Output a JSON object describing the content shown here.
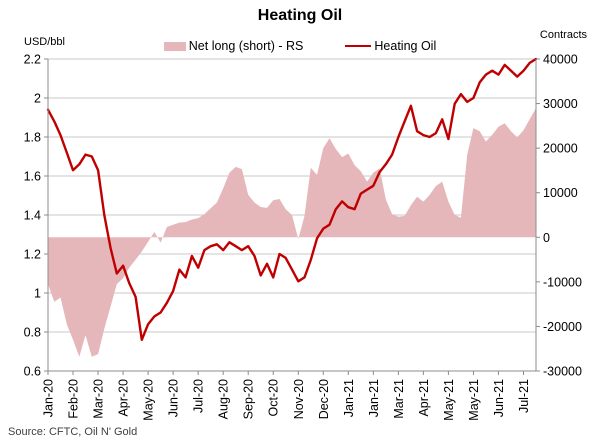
{
  "title": "Heating Oil",
  "left_axis_caption": "USD/bbl",
  "right_axis_caption": "Contracts",
  "source": "Source: CFTC, Oil N' Gold",
  "legend": {
    "area_label": "Net long (short) - RS",
    "line_label": "Heating Oil"
  },
  "colors": {
    "area_fill": "#e5b7ba",
    "line": "#c00000",
    "gridline": "#c9c9c9",
    "axis": "#8c8c8c",
    "text": "#000000",
    "source_text": "#3f3f3f"
  },
  "chart_data": {
    "type": "area",
    "title": "Heating Oil",
    "x_tick_labels": [
      "Jan-20",
      "Feb-20",
      "Mar-20",
      "Apr-20",
      "May-20",
      "Jun-20",
      "Jul-20",
      "Aug-20",
      "Sep-20",
      "Oct-20",
      "Nov-20",
      "Dec-20",
      "Jan-21",
      "Jan-21",
      "Mar-21",
      "Apr-21",
      "May-21",
      "May-21",
      "Jun-21",
      "Jul-21"
    ],
    "x_tick_every": 4,
    "n_points": 79,
    "left_axis": {
      "label": "USD/bbl",
      "min": 0.6,
      "max": 2.2,
      "ticks": [
        "2.2",
        "2",
        "1.8",
        "1.6",
        "1.4",
        "1.2",
        "1",
        "0.8",
        "0.6"
      ],
      "tick_values": [
        2.2,
        2.0,
        1.8,
        1.6,
        1.4,
        1.2,
        1.0,
        0.8,
        0.6
      ]
    },
    "right_axis": {
      "label": "Contracts",
      "min": -30000,
      "max": 40000,
      "ticks": [
        "40000",
        "30000",
        "20000",
        "10000",
        "0",
        "-10000",
        "-20000",
        "-30000"
      ],
      "tick_values": [
        40000,
        30000,
        20000,
        10000,
        0,
        -10000,
        -20000,
        -30000
      ]
    },
    "legend_position": "top",
    "grid": "horizontal",
    "series": [
      {
        "name": "Net long (short) - RS",
        "type": "area",
        "axis": "right",
        "baseline": 0,
        "values": [
          -10500,
          -14500,
          -13500,
          -19500,
          -23000,
          -26800,
          -22000,
          -26800,
          -26200,
          -20500,
          -15500,
          -10500,
          -9200,
          -6800,
          -5000,
          -3200,
          -1000,
          1200,
          -1200,
          2300,
          2800,
          3300,
          3400,
          4000,
          4300,
          5200,
          6500,
          7800,
          11000,
          14500,
          15800,
          15300,
          9500,
          7800,
          6800,
          6600,
          8300,
          8600,
          6300,
          5000,
          -400,
          4800,
          15600,
          14000,
          20000,
          22200,
          19800,
          18000,
          18800,
          16200,
          14800,
          12500,
          14500,
          15500,
          8500,
          5200,
          4600,
          4800,
          7200,
          9100,
          8000,
          9500,
          11500,
          12500,
          8000,
          5000,
          4400,
          18500,
          24500,
          23800,
          21500,
          23000,
          24800,
          25600,
          23800,
          22400,
          24000,
          26500,
          29000
        ]
      },
      {
        "name": "Heating Oil",
        "type": "line",
        "axis": "left",
        "values": [
          1.94,
          1.88,
          1.81,
          1.72,
          1.63,
          1.66,
          1.71,
          1.7,
          1.63,
          1.4,
          1.23,
          1.1,
          1.14,
          1.05,
          0.98,
          0.76,
          0.84,
          0.88,
          0.9,
          0.95,
          1.01,
          1.12,
          1.08,
          1.19,
          1.13,
          1.22,
          1.24,
          1.25,
          1.22,
          1.26,
          1.24,
          1.22,
          1.24,
          1.19,
          1.09,
          1.15,
          1.08,
          1.2,
          1.18,
          1.12,
          1.06,
          1.08,
          1.17,
          1.28,
          1.33,
          1.35,
          1.43,
          1.47,
          1.44,
          1.43,
          1.51,
          1.53,
          1.55,
          1.62,
          1.66,
          1.71,
          1.8,
          1.88,
          1.96,
          1.83,
          1.81,
          1.8,
          1.82,
          1.89,
          1.79,
          1.97,
          2.02,
          1.98,
          2.0,
          2.08,
          2.12,
          2.14,
          2.12,
          2.17,
          2.14,
          2.11,
          2.14,
          2.18,
          2.2
        ]
      }
    ]
  }
}
